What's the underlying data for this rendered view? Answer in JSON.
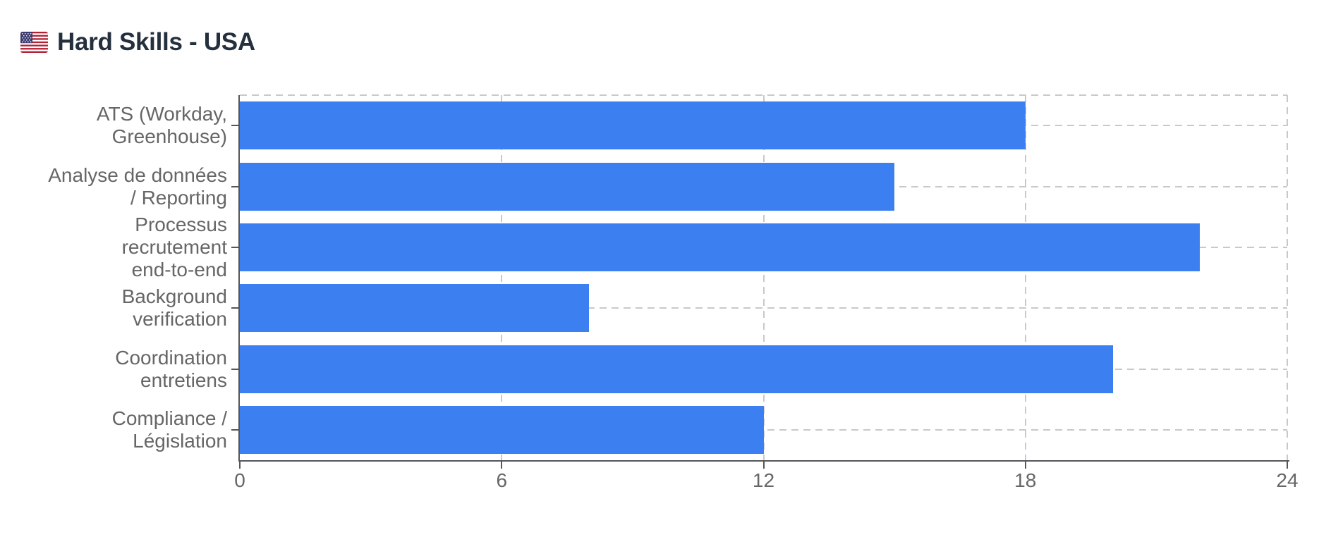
{
  "header": {
    "flag_emoji": "🇺🇸",
    "title": "Hard Skills - USA"
  },
  "colors": {
    "background": "#ffffff",
    "bar": "#3c7ff1",
    "title_text": "#25303f",
    "axis_label": "#666666",
    "gridline": "#c9c9c9",
    "axis_line": "#55565a",
    "flag_red": "#b22234",
    "flag_blue": "#3c3b6e"
  },
  "chart_data": {
    "type": "bar",
    "orientation": "horizontal",
    "title": "🇺🇸 Hard Skills - USA",
    "categories": [
      "ATS (Workday, Greenhouse)",
      "Analyse de données / Reporting",
      "Processus recrutement end-to-end",
      "Background verification",
      "Coordination entretiens",
      "Compliance / Législation"
    ],
    "category_label_lines": [
      [
        "ATS (Workday,",
        "Greenhouse)"
      ],
      [
        "Analyse de données",
        "/ Reporting"
      ],
      [
        "Processus",
        "recrutement",
        "end-to-end"
      ],
      [
        "Background",
        "verification"
      ],
      [
        "Coordination",
        "entretiens"
      ],
      [
        "Compliance /",
        "Législation"
      ]
    ],
    "values": [
      18,
      15,
      22,
      8,
      20,
      12
    ],
    "xlabel": "",
    "ylabel": "",
    "xlim": [
      0,
      24
    ],
    "x_ticks": [
      0,
      6,
      12,
      18,
      24
    ],
    "grid": true,
    "grid_style": "dashed",
    "legend": "none"
  }
}
